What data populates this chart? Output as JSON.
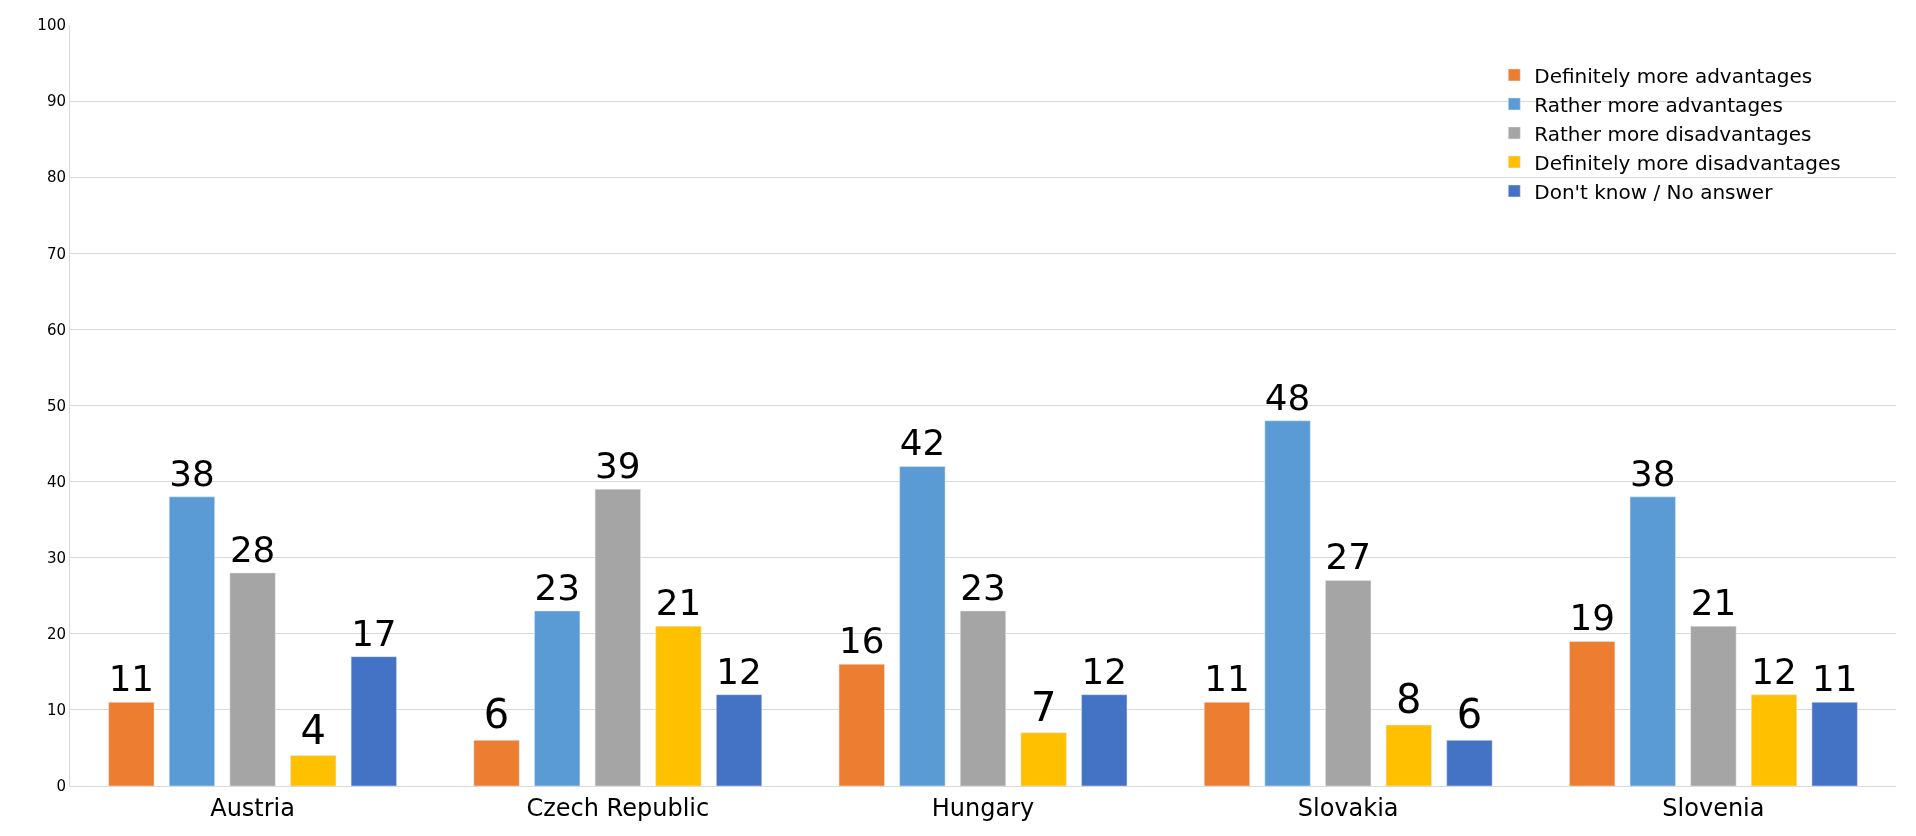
{
  "chart_data": {
    "type": "bar",
    "categories": [
      "Austria",
      "Czech Republic",
      "Hungary",
      "Slovakia",
      "Slovenia"
    ],
    "series": [
      {
        "name": "Definitely more advantages",
        "color": "#ed7d31",
        "values": [
          11,
          6,
          16,
          11,
          19
        ]
      },
      {
        "name": "Rather more advantages",
        "color": "#5b9bd5",
        "values": [
          38,
          23,
          42,
          48,
          38
        ]
      },
      {
        "name": "Rather more disadvantages",
        "color": "#a5a5a5",
        "values": [
          28,
          39,
          23,
          27,
          21
        ]
      },
      {
        "name": "Definitely more disadvantages",
        "color": "#ffc000",
        "values": [
          4,
          21,
          7,
          8,
          12
        ]
      },
      {
        "name": "Don't know / No answer",
        "color": "#4472c4",
        "values": [
          17,
          12,
          12,
          6,
          11
        ]
      }
    ],
    "ylim": [
      0,
      100
    ],
    "yticks": [
      0,
      10,
      20,
      30,
      40,
      50,
      60,
      70,
      80,
      90,
      100
    ],
    "grid": "y",
    "legend": "top right",
    "data_labels": true
  }
}
